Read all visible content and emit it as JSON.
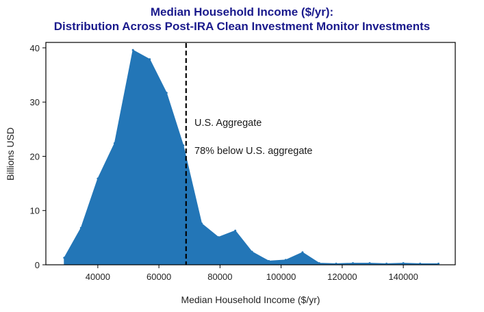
{
  "chart_data": {
    "type": "area",
    "title_line1": "Median Household Income ($/yr):",
    "title_line2": "Distribution Across Post-IRA Clean Investment Monitor Investments",
    "xlabel": "Median Household Income ($/yr)",
    "ylabel": "Billions USD",
    "xlim": [
      23000,
      157000
    ],
    "ylim": [
      0,
      41
    ],
    "xticks": [
      40000,
      60000,
      80000,
      100000,
      120000,
      140000
    ],
    "yticks": [
      0,
      10,
      20,
      30,
      40
    ],
    "x": [
      29000,
      34500,
      40000,
      45500,
      51500,
      57000,
      62500,
      68000,
      74000,
      79500,
      85000,
      90500,
      96000,
      101500,
      107000,
      112500,
      118000,
      123500,
      129000,
      134500,
      140000,
      145500,
      151500
    ],
    "y": [
      1.3,
      6.8,
      15.9,
      22.4,
      39.6,
      37.9,
      31.7,
      22.0,
      7.6,
      5.1,
      6.3,
      2.4,
      0.7,
      0.9,
      2.3,
      0.3,
      0.2,
      0.3,
      0.3,
      0.2,
      0.3,
      0.2,
      0.2
    ],
    "area_color": "#2376b7",
    "reference_line": {
      "x": 68900,
      "label": "U.S. Aggregate",
      "note": "78% below U.S. aggregate",
      "style": "dashed",
      "color": "#000000"
    }
  }
}
